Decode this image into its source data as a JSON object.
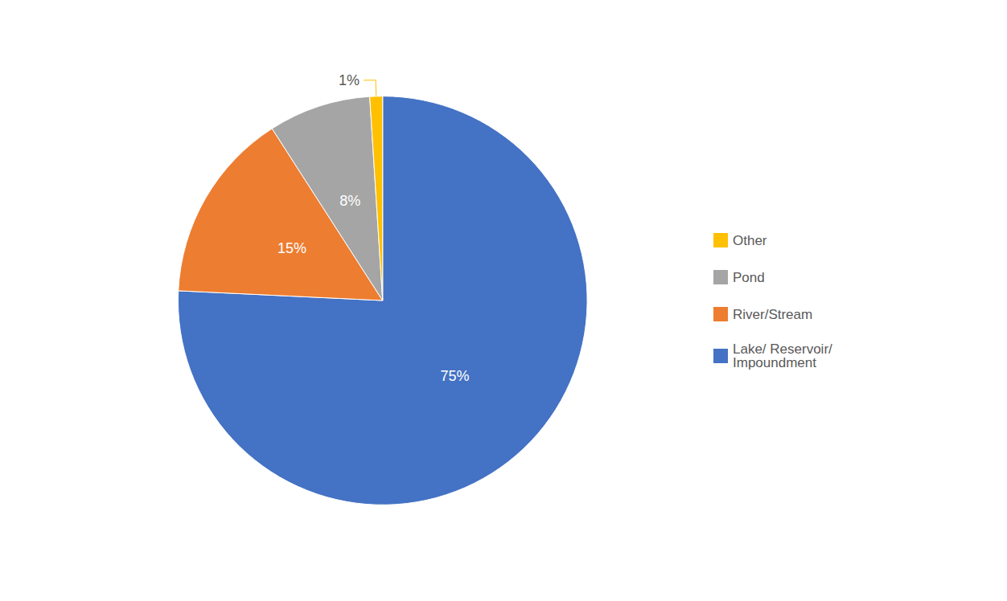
{
  "chart_data": {
    "type": "pie",
    "categories": [
      "Lake/ Reservoir/\nImpoundment",
      "River/Stream",
      "Pond",
      "Other"
    ],
    "values": [
      75,
      15,
      8,
      1
    ],
    "value_labels": [
      "75%",
      "15%",
      "8%",
      "1%"
    ],
    "colors": [
      "#4472C4",
      "#ED7D31",
      "#A5A5A5",
      "#FFC000"
    ],
    "data_labels": true,
    "legend": "right"
  }
}
